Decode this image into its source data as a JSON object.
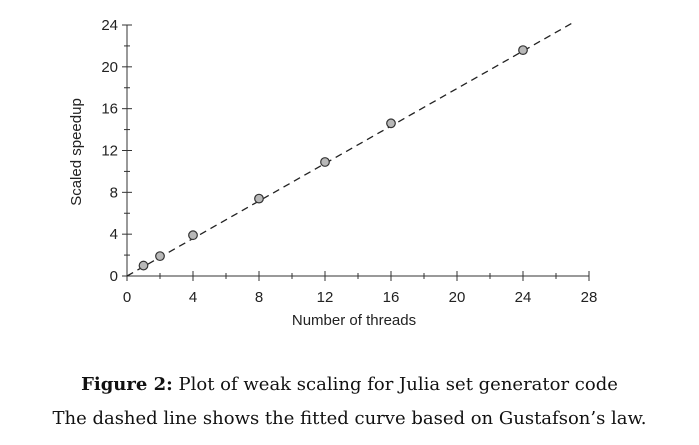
{
  "chart_data": {
    "type": "scatter",
    "xlabel": "Number of threads",
    "ylabel": "Scaled speedup",
    "xlim": [
      0,
      28
    ],
    "ylim": [
      0,
      24
    ],
    "x_ticks": [
      0,
      4,
      8,
      12,
      16,
      20,
      24,
      28
    ],
    "y_ticks": [
      0,
      4,
      8,
      12,
      16,
      20,
      24
    ],
    "grid": false,
    "series": [
      {
        "points": [
          {
            "x": 1,
            "y": 1.0
          },
          {
            "x": 2,
            "y": 1.9
          },
          {
            "x": 4,
            "y": 3.9
          },
          {
            "x": 8,
            "y": 7.4
          },
          {
            "x": 12,
            "y": 10.9
          },
          {
            "x": 16,
            "y": 14.6
          },
          {
            "x": 24,
            "y": 21.6
          }
        ]
      }
    ],
    "fit_line": {
      "style": "dashed",
      "from": {
        "x": 0,
        "y": 0
      },
      "to": {
        "x": 27,
        "y": 24.2
      }
    }
  },
  "caption": {
    "figure_label": "Figure 2:",
    "title": "Plot of weak scaling for Julia set generator code",
    "subtitle": "The dashed line shows the fitted curve based on Gustafson’s law."
  }
}
